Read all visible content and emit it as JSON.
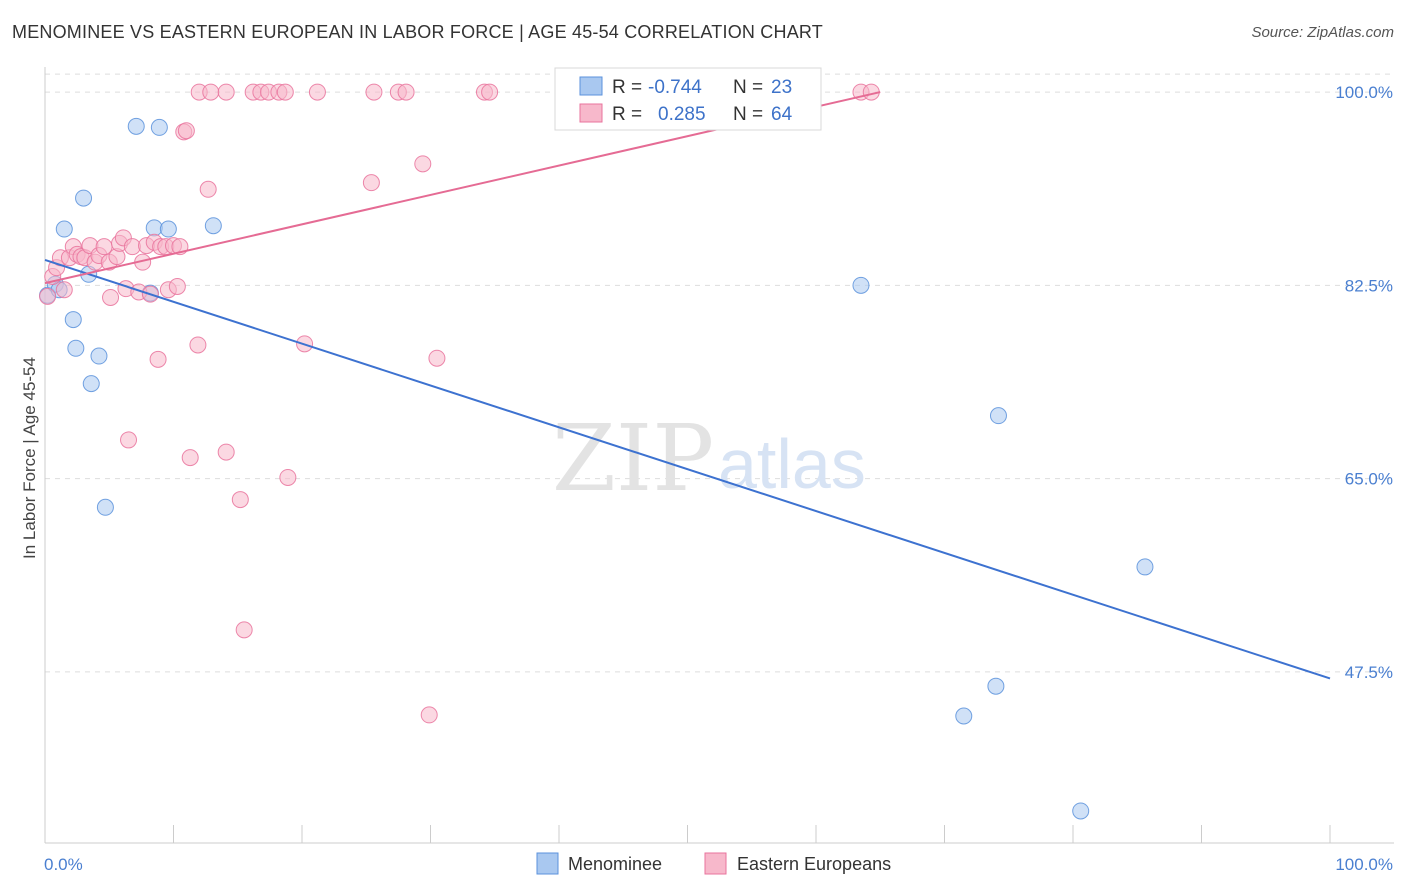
{
  "header": {
    "title": "MENOMINEE VS EASTERN EUROPEAN IN LABOR FORCE | AGE 45-54 CORRELATION CHART",
    "source": "Source: ZipAtlas.com"
  },
  "watermark": {
    "zip": "ZIP",
    "atlas": "atlas"
  },
  "legend_box": {
    "rows": [
      {
        "r_label": "R =",
        "r_value": "-0.744",
        "n_label": "N =",
        "n_value": "23",
        "color": "#a9c8f0"
      },
      {
        "r_label": "R =",
        "r_value": "0.285",
        "n_label": "N =",
        "n_value": "64",
        "color": "#f7b8cb"
      }
    ]
  },
  "bottom_legend": [
    {
      "label": "Menominee",
      "color": "#a9c8f0"
    },
    {
      "label": "Eastern Europeans",
      "color": "#f7b8cb"
    }
  ],
  "chart_data": {
    "type": "scatter",
    "title": "MENOMINEE VS EASTERN EUROPEAN IN LABOR FORCE | AGE 45-54 CORRELATION CHART",
    "xlabel": "",
    "ylabel": "In Labor Force | Age 45-54",
    "xlim": [
      0,
      100
    ],
    "ylim": [
      32,
      102
    ],
    "x_tick_labels": [
      "0.0%",
      "100.0%"
    ],
    "y_ticks": [
      47.5,
      65.0,
      82.5,
      100.0
    ],
    "y_tick_labels": [
      "47.5%",
      "65.0%",
      "82.5%",
      "100.0%"
    ],
    "grid": true,
    "legend_position": "top-center",
    "colors": {
      "menominee": "#5b92dc",
      "menominee_fill": "#a9c8f0",
      "eastern": "#e9739c",
      "eastern_fill": "#f7b8cb"
    },
    "series": [
      {
        "name": "Menominee",
        "r": -0.744,
        "n": 23,
        "trend": {
          "x": [
            0,
            100
          ],
          "y": [
            84.8,
            46.9
          ]
        },
        "points": [
          [
            0.2,
            81.6
          ],
          [
            0.8,
            82.6
          ],
          [
            1.1,
            82.1
          ],
          [
            1.5,
            87.6
          ],
          [
            2.2,
            79.4
          ],
          [
            2.4,
            76.8
          ],
          [
            3.0,
            90.4
          ],
          [
            3.4,
            83.5
          ],
          [
            3.6,
            73.6
          ],
          [
            4.2,
            76.1
          ],
          [
            4.7,
            62.4
          ],
          [
            7.1,
            96.9
          ],
          [
            8.2,
            81.8
          ],
          [
            8.5,
            87.7
          ],
          [
            8.9,
            96.8
          ],
          [
            9.6,
            87.6
          ],
          [
            13.1,
            87.9
          ],
          [
            63.5,
            82.5
          ],
          [
            74.2,
            70.7
          ],
          [
            71.5,
            43.5
          ],
          [
            74.0,
            46.2
          ],
          [
            80.6,
            34.9
          ],
          [
            85.6,
            57.0
          ]
        ]
      },
      {
        "name": "Eastern Europeans",
        "r": 0.285,
        "n": 64,
        "trend": {
          "x": [
            0,
            65
          ],
          "y": [
            82.7,
            100.0
          ]
        },
        "points": [
          [
            0.2,
            81.5
          ],
          [
            0.6,
            83.3
          ],
          [
            0.9,
            84.1
          ],
          [
            1.2,
            85.0
          ],
          [
            1.5,
            82.1
          ],
          [
            1.9,
            85.0
          ],
          [
            2.2,
            86.0
          ],
          [
            2.5,
            85.3
          ],
          [
            2.8,
            85.1
          ],
          [
            3.1,
            85.0
          ],
          [
            3.5,
            86.1
          ],
          [
            3.9,
            84.6
          ],
          [
            4.2,
            85.2
          ],
          [
            4.6,
            86.0
          ],
          [
            5.0,
            84.6
          ],
          [
            5.1,
            81.4
          ],
          [
            5.6,
            85.1
          ],
          [
            5.8,
            86.3
          ],
          [
            6.1,
            86.8
          ],
          [
            6.3,
            82.2
          ],
          [
            6.5,
            68.5
          ],
          [
            6.8,
            86.0
          ],
          [
            7.3,
            81.9
          ],
          [
            7.6,
            84.6
          ],
          [
            7.9,
            86.1
          ],
          [
            8.2,
            81.7
          ],
          [
            8.5,
            86.4
          ],
          [
            8.8,
            75.8
          ],
          [
            9.0,
            86.0
          ],
          [
            9.4,
            86.0
          ],
          [
            9.6,
            82.1
          ],
          [
            10.0,
            86.1
          ],
          [
            10.3,
            82.4
          ],
          [
            10.5,
            86.0
          ],
          [
            10.8,
            96.4
          ],
          [
            11.0,
            96.5
          ],
          [
            11.3,
            66.9
          ],
          [
            11.9,
            77.1
          ],
          [
            12.0,
            100.0
          ],
          [
            12.9,
            100.0
          ],
          [
            12.7,
            91.2
          ],
          [
            14.1,
            100.0
          ],
          [
            14.1,
            67.4
          ],
          [
            15.2,
            63.1
          ],
          [
            15.5,
            51.3
          ],
          [
            16.2,
            100.0
          ],
          [
            16.8,
            100.0
          ],
          [
            17.4,
            100.0
          ],
          [
            18.2,
            100.0
          ],
          [
            18.7,
            100.0
          ],
          [
            18.9,
            65.1
          ],
          [
            20.2,
            77.2
          ],
          [
            21.2,
            100.0
          ],
          [
            25.4,
            91.8
          ],
          [
            25.6,
            100.0
          ],
          [
            27.5,
            100.0
          ],
          [
            28.1,
            100.0
          ],
          [
            29.4,
            93.5
          ],
          [
            29.9,
            43.6
          ],
          [
            30.5,
            75.9
          ],
          [
            34.2,
            100.0
          ],
          [
            34.6,
            100.0
          ],
          [
            63.5,
            100.0
          ],
          [
            64.3,
            100.0
          ]
        ]
      }
    ]
  }
}
